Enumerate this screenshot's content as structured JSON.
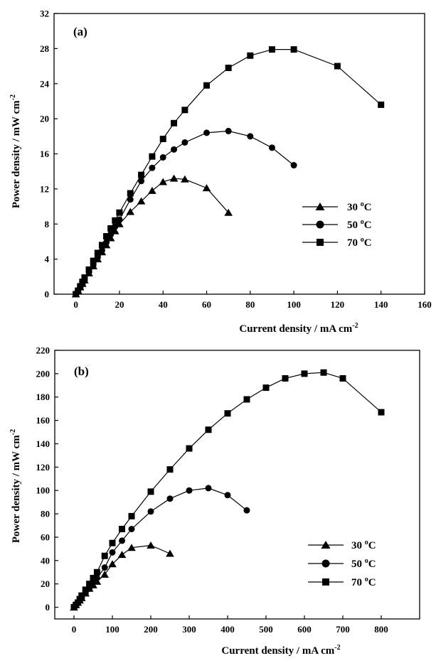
{
  "figure": {
    "panels": [
      {
        "panel_label": "(a)",
        "xlabel": "Current density /  mA cm",
        "xlabel_sup": "-2",
        "ylabel": "Power density / mW cm",
        "ylabel_sup": "-2",
        "legend": [
          {
            "label": "30 ",
            "sup": "o",
            "unit": "C"
          },
          {
            "label": "50 ",
            "sup": "o",
            "unit": "C"
          },
          {
            "label": "70 ",
            "sup": "o",
            "unit": "C"
          }
        ]
      },
      {
        "panel_label": "(b)",
        "xlabel": "Current density /  mA cm",
        "xlabel_sup": "-2",
        "ylabel": "Power density / mW cm",
        "ylabel_sup": "-2",
        "legend": [
          {
            "label": "30 ",
            "sup": "o",
            "unit": "C"
          },
          {
            "label": "50 ",
            "sup": "o",
            "unit": "C"
          },
          {
            "label": "70 ",
            "sup": "o",
            "unit": "C"
          }
        ]
      }
    ]
  },
  "colors": {
    "series": "#000000",
    "background": "#ffffff"
  },
  "chart_data": [
    {
      "type": "line",
      "panel_label": "(a)",
      "xlabel": "Current density /  mA cm-2",
      "ylabel": "Power density / mW cm-2",
      "xlim": [
        -10,
        160
      ],
      "ylim": [
        0,
        32
      ],
      "xticks": [
        0,
        20,
        40,
        60,
        80,
        100,
        120,
        140,
        160
      ],
      "yticks": [
        0,
        4,
        8,
        12,
        16,
        20,
        24,
        28,
        32
      ],
      "legend_position": "right",
      "grid": false,
      "series": [
        {
          "name": "30 oC",
          "marker": "triangle",
          "x": [
            0,
            1,
            2,
            3,
            4,
            6,
            8,
            10,
            12,
            14,
            16,
            18,
            20,
            25,
            30,
            35,
            40,
            45,
            50,
            60,
            70
          ],
          "y": [
            0,
            0.4,
            0.8,
            1.2,
            1.6,
            2.4,
            3.2,
            4.0,
            4.8,
            5.6,
            6.4,
            7.2,
            8.0,
            9.4,
            10.6,
            11.8,
            12.8,
            13.2,
            13.1,
            12.1,
            9.3
          ]
        },
        {
          "name": "50 oC",
          "marker": "circle",
          "x": [
            0,
            1,
            2,
            3,
            4,
            6,
            8,
            10,
            12,
            14,
            16,
            18,
            20,
            25,
            30,
            35,
            40,
            45,
            50,
            60,
            70,
            80,
            90,
            100
          ],
          "y": [
            0,
            0.4,
            0.8,
            1.2,
            1.6,
            2.5,
            3.3,
            4.2,
            5.0,
            5.9,
            6.8,
            7.7,
            8.5,
            10.8,
            12.9,
            14.4,
            15.6,
            16.5,
            17.3,
            18.4,
            18.6,
            18.0,
            16.7,
            14.7
          ]
        },
        {
          "name": "70 oC",
          "marker": "square",
          "x": [
            0,
            1,
            2,
            3,
            4,
            6,
            8,
            10,
            12,
            14,
            16,
            18,
            20,
            25,
            30,
            35,
            40,
            45,
            50,
            60,
            70,
            80,
            90,
            100,
            120,
            140
          ],
          "y": [
            0,
            0.4,
            0.9,
            1.4,
            1.9,
            2.8,
            3.8,
            4.7,
            5.6,
            6.6,
            7.5,
            8.4,
            9.3,
            11.5,
            13.6,
            15.7,
            17.7,
            19.5,
            21.0,
            23.8,
            25.8,
            27.2,
            27.9,
            27.9,
            26.0,
            21.6
          ]
        }
      ]
    },
    {
      "type": "line",
      "panel_label": "(b)",
      "xlabel": "Current density /  mA cm-2",
      "ylabel": "Power density / mW cm-2",
      "xlim": [
        -50,
        900
      ],
      "ylim": [
        -10,
        220
      ],
      "xticks": [
        0,
        100,
        200,
        300,
        400,
        500,
        600,
        700,
        800
      ],
      "yticks": [
        0,
        20,
        40,
        60,
        80,
        100,
        120,
        140,
        160,
        180,
        200,
        220
      ],
      "legend_position": "right",
      "grid": false,
      "series": [
        {
          "name": "30 oC",
          "marker": "triangle",
          "x": [
            0,
            5,
            10,
            15,
            20,
            30,
            40,
            50,
            60,
            80,
            100,
            125,
            150,
            200,
            250
          ],
          "y": [
            0,
            2,
            4,
            6,
            8,
            12,
            16,
            19,
            22,
            28,
            37,
            45,
            51,
            53,
            46
          ]
        },
        {
          "name": "50 oC",
          "marker": "circle",
          "x": [
            0,
            5,
            10,
            15,
            20,
            30,
            40,
            50,
            60,
            80,
            100,
            125,
            150,
            200,
            250,
            300,
            350,
            400,
            450
          ],
          "y": [
            0,
            2,
            4,
            6,
            8,
            12,
            16,
            21,
            25,
            34,
            47,
            57,
            67,
            82,
            93,
            100,
            102,
            96,
            83
          ]
        },
        {
          "name": "70 oC",
          "marker": "square",
          "x": [
            0,
            5,
            10,
            15,
            20,
            30,
            40,
            50,
            60,
            80,
            100,
            125,
            150,
            200,
            250,
            300,
            350,
            400,
            450,
            500,
            550,
            600,
            650,
            700,
            800
          ],
          "y": [
            0,
            2,
            4,
            7,
            10,
            15,
            20,
            25,
            30,
            44,
            55,
            67,
            78,
            99,
            118,
            136,
            152,
            166,
            178,
            188,
            196,
            200,
            201,
            196,
            167
          ]
        }
      ]
    }
  ]
}
